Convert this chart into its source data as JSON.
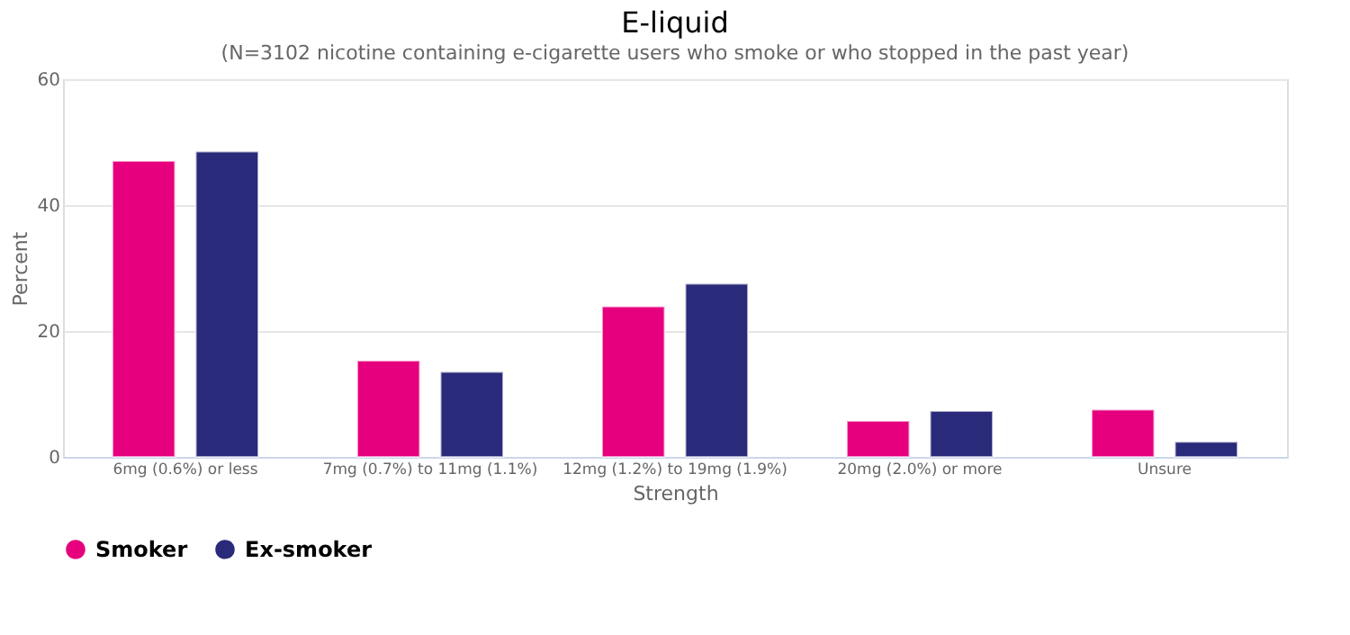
{
  "chart_data": {
    "type": "bar",
    "title": "E-liquid",
    "subtitle": "(N=3102 nicotine containing e-cigarette users who smoke or who stopped in the past year)",
    "xlabel": "Strength",
    "ylabel": "Percent",
    "categories": [
      "6mg (0.6%) or less",
      "7mg (0.7%) to 11mg (1.1%)",
      "12mg (1.2%) to 19mg (1.9%)",
      "20mg (2.0%) or more",
      "Unsure"
    ],
    "series": [
      {
        "name": "Smoker",
        "color": "#e6007e",
        "values": [
          47.0,
          15.3,
          23.9,
          5.7,
          7.5
        ]
      },
      {
        "name": "Ex-smoker",
        "color": "#2a2a7a",
        "values": [
          48.5,
          13.5,
          27.5,
          7.3,
          2.4
        ]
      }
    ],
    "ylim": [
      0,
      60
    ],
    "yticks": [
      0,
      20,
      40,
      60
    ],
    "grid": "y",
    "legend": "bottom"
  }
}
